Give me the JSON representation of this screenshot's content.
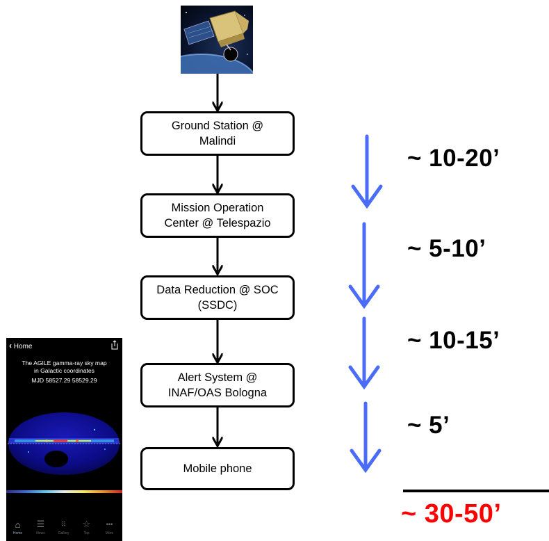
{
  "flow": {
    "steps": [
      {
        "lines": [
          "Ground Station @",
          "Malindi"
        ]
      },
      {
        "lines": [
          "Mission Operation",
          "Center @ Telespazio"
        ]
      },
      {
        "lines": [
          "Data Reduction @ SOC",
          "(SSDC)"
        ]
      },
      {
        "lines": [
          "Alert System @",
          "INAF/OAS Bologna"
        ]
      },
      {
        "lines": [
          "Mobile phone"
        ]
      }
    ],
    "latencies": [
      "~ 10-20’",
      "~ 5-10’",
      "~ 10-15’",
      "~ 5’"
    ],
    "total": "~ 30-50’",
    "colors": {
      "arrow_blue": "#4a6cf7",
      "total_red": "#ff0000",
      "box_border": "#000000"
    }
  },
  "phone": {
    "back_label": "Home",
    "caption_line1": "The AGILE gamma-ray sky map",
    "caption_line2": "in Galactic coordinates",
    "mjd": "MJD 58527.29 58529.29",
    "tabs": [
      {
        "label": "Home",
        "icon": "house-icon"
      },
      {
        "label": "News",
        "icon": "list-icon"
      },
      {
        "label": "Gallery",
        "icon": "grid-icon"
      },
      {
        "label": "Top",
        "icon": "star-icon"
      },
      {
        "label": "More",
        "icon": "more-icon"
      }
    ]
  }
}
